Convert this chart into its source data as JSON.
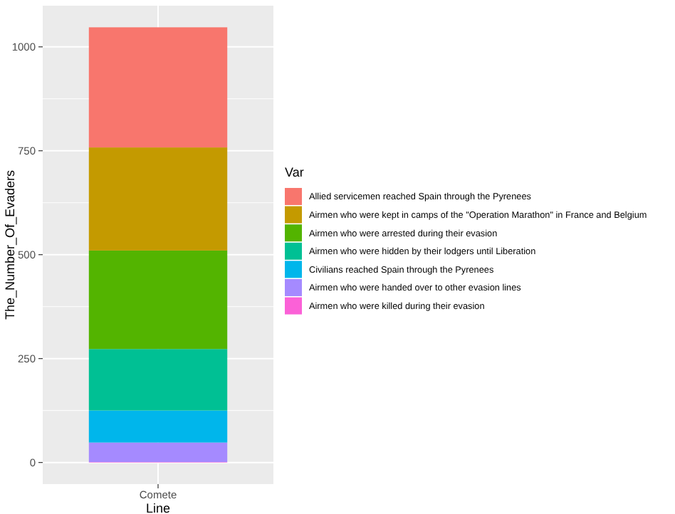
{
  "chart_data": {
    "type": "bar",
    "stacked": true,
    "xlabel": "Line",
    "ylabel": "The_Number_Of_Evaders",
    "legend_title": "Var",
    "categories": [
      "Comete"
    ],
    "ylim": [
      -52,
      1099
    ],
    "yticks": [
      0,
      250,
      500,
      750,
      1000
    ],
    "grid": true,
    "legend": "right",
    "series": [
      {
        "name": "Airmen who were killed during their evasion",
        "color": "#fb61d7",
        "values": [
          1
        ]
      },
      {
        "name": "Airmen who were handed over to other evasion lines",
        "color": "#a58aff",
        "values": [
          47
        ]
      },
      {
        "name": "Civilians reached Spain through the Pyrenees",
        "color": "#00b6eb",
        "values": [
          77
        ]
      },
      {
        "name": "Airmen who were hidden by their lodgers until Liberation",
        "color": "#00c094",
        "values": [
          148
        ]
      },
      {
        "name": "Airmen who were arrested during their evasion",
        "color": "#53b400",
        "values": [
          237
        ]
      },
      {
        "name": "Airmen who were kept in camps of the \"Operation Marathon\" in France and Belgium",
        "color": "#c49a00",
        "values": [
          248
        ]
      },
      {
        "name": "Allied servicemen reached Spain through the Pyrenees",
        "color": "#f8766d",
        "values": [
          289
        ]
      }
    ]
  }
}
